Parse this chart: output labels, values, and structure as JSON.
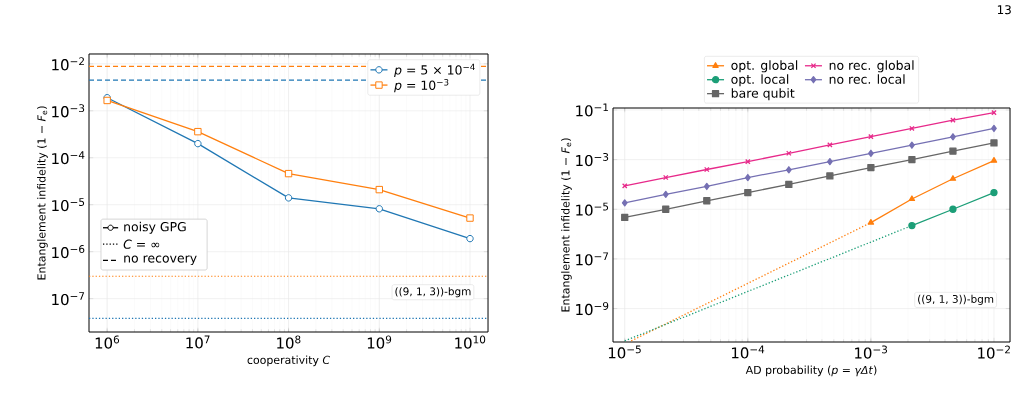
{
  "chart_data": [
    {
      "type": "line",
      "xlabel": "cooperativity *C*",
      "ylabel": "Entanglement infidelity (1 − *F*$_{e}$)",
      "log": "xy",
      "grid": true,
      "legend": "top right",
      "xlim": [
        631000,
        15800000000
      ],
      "ylim": [
        1.95e-08,
        0.0162
      ],
      "xticks": [
        {
          "value": 1000000,
          "label": "10$^{6}$"
        },
        {
          "value": 10000000,
          "label": "10$^{7}$"
        },
        {
          "value": 100000000,
          "label": "10$^{8}$"
        },
        {
          "value": 1000000000,
          "label": "10$^{9}$"
        },
        {
          "value": 10000000000,
          "label": "10$^{10}$"
        }
      ],
      "yticks": [
        {
          "value": 0.01,
          "label": "10$^{−2}$"
        },
        {
          "value": 0.001,
          "label": "10$^{−3}$"
        },
        {
          "value": 0.0001,
          "label": "10$^{−4}$"
        },
        {
          "value": 1e-05,
          "label": "10$^{−5}$"
        },
        {
          "value": 1e-06,
          "label": "10$^{−6}$"
        },
        {
          "value": 1e-07,
          "label": "10$^{−7}$"
        }
      ],
      "x": [
        1000000,
        10000000,
        100000000,
        1000000000,
        10000000000
      ],
      "series": [
        {
          "name": "*p* = 5 × 10$^{−4}$",
          "color": "#1f77b4",
          "marker": "circle",
          "values": [
            0.0019,
            0.0002,
            1.4e-05,
            8.2e-06,
            1.9e-06
          ]
        },
        {
          "name": "*p* = 10$^{−3}$",
          "color": "#ff7f0e",
          "marker": "square",
          "values": [
            0.00166,
            0.00036,
            4.6e-05,
            2.1e-05,
            5.2e-06
          ]
        }
      ],
      "ref_lines": [
        {
          "axis": "y",
          "value": 0.0088,
          "color": "#ff7f0e",
          "line_style": "dashed"
        },
        {
          "axis": "y",
          "value": 0.0045,
          "color": "#1f77b4",
          "line_style": "dashed"
        },
        {
          "axis": "y",
          "value": 3e-07,
          "color": "#ff7f0e",
          "line_style": "dotted"
        },
        {
          "axis": "y",
          "value": 3.8e-08,
          "color": "#1f77b4",
          "line_style": "dotted"
        }
      ],
      "annotations": [
        "noisy GPG",
        "*C* = ∞",
        "no recovery",
        "((9, 1, 3))-bgm"
      ]
    },
    {
      "type": "line",
      "xlabel": "AD probability (*p* = *γΔt*)",
      "ylabel": "Entanglement infidelity (1 − *F*$_{e}$)",
      "log": "xy",
      "grid": true,
      "legend": "top",
      "xlim": [
        8.03e-06,
        0.0135
      ],
      "ylim": [
        4.5e-11,
        0.12
      ],
      "xticks": [
        {
          "value": 1e-05,
          "label": "10$^{−5}$"
        },
        {
          "value": 0.0001,
          "label": "10$^{−4}$"
        },
        {
          "value": 0.001,
          "label": "10$^{−3}$"
        },
        {
          "value": 0.01,
          "label": "10$^{−2}$"
        }
      ],
      "yticks": [
        {
          "value": 0.1,
          "label": "10$^{−1}$"
        },
        {
          "value": 0.001,
          "label": "10$^{−3}$"
        },
        {
          "value": 1e-05,
          "label": "10$^{−5}$"
        },
        {
          "value": 1e-07,
          "label": "10$^{−7}$"
        },
        {
          "value": 1e-09,
          "label": "10$^{−9}$"
        }
      ],
      "x": [
        1e-05,
        2.154e-05,
        4.642e-05,
        0.0001,
        0.0002154,
        0.0004642,
        0.001,
        0.002154,
        0.004642,
        0.01
      ],
      "series": [
        {
          "name": "opt. global",
          "color": "#ff7f0e",
          "marker": "triangle",
          "values": [
            null,
            null,
            null,
            null,
            null,
            null,
            2.9e-06,
            2.6e-05,
            0.00017,
            0.00091
          ]
        },
        {
          "name": "no rec. global",
          "color": "#e7298a",
          "marker": "cross",
          "values": [
            8.7e-05,
            0.00019,
            0.0004,
            0.00083,
            0.0018,
            0.0039,
            0.0085,
            0.018,
            0.039,
            0.078
          ]
        },
        {
          "name": "opt. local",
          "color": "#1b9e77",
          "marker": "circle",
          "values": [
            null,
            null,
            null,
            null,
            null,
            null,
            null,
            2.2e-06,
            1e-05,
            4.7e-05
          ]
        },
        {
          "name": "no rec. local",
          "color": "#7570b3",
          "marker": "diamond",
          "values": [
            1.8e-05,
            4e-05,
            8.3e-05,
            0.00019,
            0.00039,
            0.00083,
            0.0018,
            0.0038,
            0.0083,
            0.018
          ]
        },
        {
          "name": "bare qubit",
          "color": "#666666",
          "marker": "square",
          "values": [
            4.7e-06,
            1e-05,
            2.2e-05,
            4.7e-05,
            0.0001,
            0.00022,
            0.00048,
            0.001,
            0.0022,
            0.0047
          ]
        },
        {
          "color": "#ff7f0e",
          "marker": "none",
          "line_style": "dotted",
          "x": [
            1.13e-05,
            0.001
          ],
          "values": [
            5e-11,
            2.9e-06
          ]
        },
        {
          "color": "#1b9e77",
          "marker": "none",
          "line_style": "dotted",
          "x": [
            1e-05,
            0.002154
          ],
          "values": [
            5e-11,
            2.2e-06
          ]
        }
      ],
      "annotations": [
        "((9, 1, 3))-bgm",
        "13"
      ]
    }
  ]
}
